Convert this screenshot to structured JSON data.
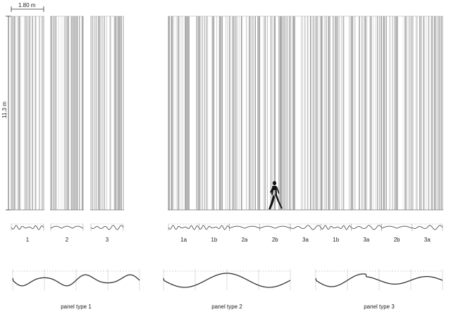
{
  "dimensions": {
    "width_label": "1.80 m",
    "height_label": "11.3 m"
  },
  "single_panels": [
    {
      "label": "1",
      "pattern": "type1"
    },
    {
      "label": "2",
      "pattern": "type2"
    },
    {
      "label": "3",
      "pattern": "type3"
    }
  ],
  "wall_panels": [
    {
      "label": "1a"
    },
    {
      "label": "1b"
    },
    {
      "label": "2a"
    },
    {
      "label": "2b"
    },
    {
      "label": "3a"
    },
    {
      "label": "1b"
    },
    {
      "label": "3a"
    },
    {
      "label": "2b"
    },
    {
      "label": "3a"
    }
  ],
  "panel_types": [
    {
      "label": "panel type 1"
    },
    {
      "label": "panel type 2"
    },
    {
      "label": "panel type 3"
    }
  ],
  "colors": {
    "line": "#bdbdbd",
    "dark_line": "#555555",
    "dim_line": "#333333"
  }
}
